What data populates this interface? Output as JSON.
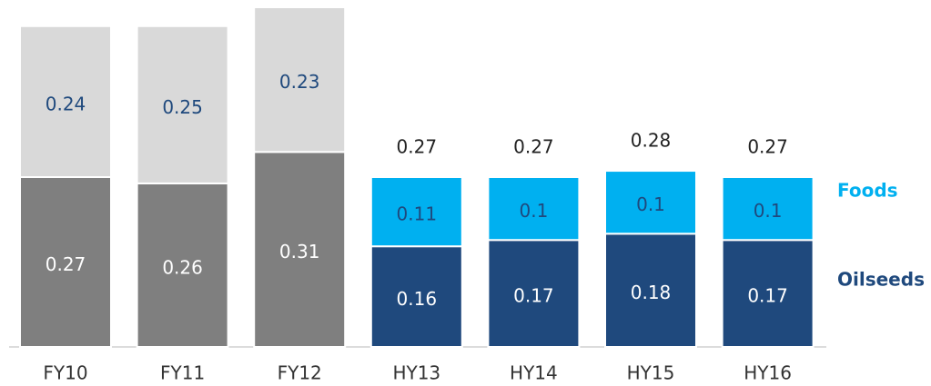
{
  "chart_data": {
    "type": "stacked-bar",
    "categories": [
      "FY10",
      "FY11",
      "FY12",
      "HY13",
      "HY14",
      "HY15",
      "HY16"
    ],
    "series": [
      {
        "name": "Oilseeds",
        "color": "#1f497d",
        "colors": [
          "#7f7f7f",
          "#7f7f7f",
          "#7f7f7f",
          "#1f497d",
          "#1f497d",
          "#1f497d",
          "#1f497d"
        ],
        "values": [
          0.27,
          0.26,
          0.31,
          0.16,
          0.17,
          0.18,
          0.17
        ]
      },
      {
        "name": "Foods",
        "color": "#00b0f0",
        "colors": [
          "#d9d9d9",
          "#d9d9d9",
          "#d9d9d9",
          "#00b0f0",
          "#00b0f0",
          "#00b0f0",
          "#00b0f0"
        ],
        "values": [
          0.24,
          0.25,
          0.23,
          0.11,
          0.1,
          0.1,
          0.1
        ]
      }
    ],
    "totals": [
      null,
      null,
      null,
      0.27,
      0.27,
      0.28,
      0.27
    ]
  }
}
